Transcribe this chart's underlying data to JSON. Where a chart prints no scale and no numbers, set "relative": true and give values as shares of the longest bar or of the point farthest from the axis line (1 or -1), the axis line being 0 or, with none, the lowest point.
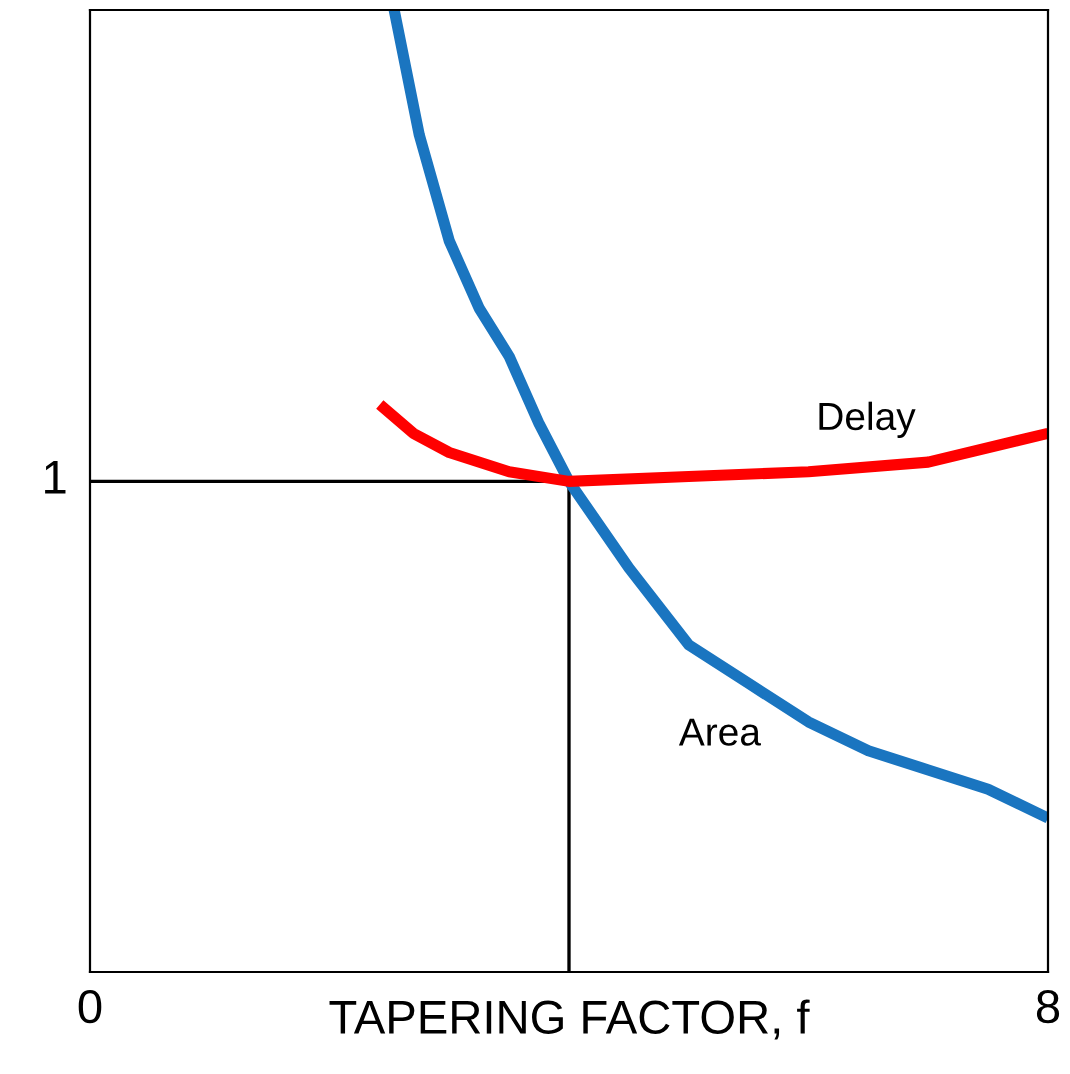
{
  "chart_data": {
    "type": "line",
    "xlabel": "TAPERING FACTOR, f",
    "xlim": [
      0,
      8
    ],
    "xticks": [
      0,
      8
    ],
    "relative": true,
    "series": [
      {
        "name": "Area",
        "color": "#1a75c0",
        "x": [
          2.54,
          2.75,
          3,
          3.25,
          3.5,
          3.75,
          4,
          4.5,
          5,
          5.5,
          6,
          6.5,
          7,
          7.5,
          8
        ],
        "values": [
          1,
          0.87,
          0.76,
          0.69,
          0.64,
          0.57,
          0.51,
          0.42,
          0.34,
          0.3,
          0.26,
          0.23,
          0.21,
          0.19,
          0.16
        ]
      },
      {
        "name": "Delay",
        "color": "#ff0000",
        "x": [
          2.42,
          2.7,
          3,
          3.5,
          4,
          5,
          6,
          7,
          8
        ],
        "values": [
          0.59,
          0.56,
          0.54,
          0.52,
          0.51,
          0.515,
          0.52,
          0.53,
          0.56
        ]
      }
    ],
    "annotations": [
      {
        "text": "1",
        "x": 0,
        "y": 0.51
      }
    ],
    "ref_lines": [
      {
        "axis": "y",
        "value": 0.51,
        "color": "#000000"
      },
      {
        "axis": "x",
        "value": 4,
        "color": "#000000"
      }
    ],
    "line_style": "solid",
    "marker": "none"
  }
}
